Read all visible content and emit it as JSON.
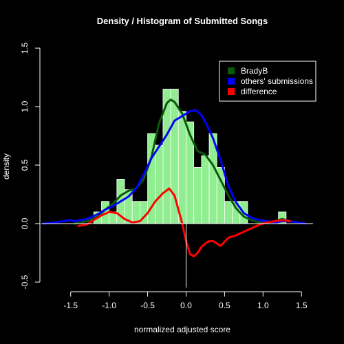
{
  "chart_data": {
    "type": "histogram+density",
    "title": "Density / Histogram of Submitted Songs",
    "xlabel": "normalized adjusted score",
    "ylabel": "density",
    "xlim": [
      -1.9,
      1.65
    ],
    "ylim": [
      -0.5,
      1.5
    ],
    "x_ticks": [
      -1.5,
      -1.0,
      -0.5,
      0.0,
      0.5,
      1.0,
      1.5
    ],
    "x_tick_labels": [
      "-1.5",
      "-1.0",
      "-0.5",
      "0.0",
      "0.5",
      "1.0",
      "1.5"
    ],
    "y_ticks": [
      -0.5,
      0.0,
      0.5,
      1.0,
      1.5
    ],
    "y_tick_labels": [
      "-0.5",
      "0.0",
      "0.5",
      "1.0",
      "1.5"
    ],
    "legend_position": "top-right",
    "histogram": {
      "color": "#90ee90",
      "bin_width": 0.1,
      "bins": [
        {
          "x0": -1.4,
          "x1": -1.3,
          "height": 0.0
        },
        {
          "x0": -1.3,
          "x1": -1.2,
          "height": 0.0
        },
        {
          "x0": -1.2,
          "x1": -1.1,
          "height": 0.1
        },
        {
          "x0": -1.1,
          "x1": -1.0,
          "height": 0.19
        },
        {
          "x0": -1.0,
          "x1": -0.9,
          "height": 0.1
        },
        {
          "x0": -0.9,
          "x1": -0.8,
          "height": 0.38
        },
        {
          "x0": -0.8,
          "x1": -0.7,
          "height": 0.29
        },
        {
          "x0": -0.7,
          "x1": -0.6,
          "height": 0.19
        },
        {
          "x0": -0.6,
          "x1": -0.5,
          "height": 0.19
        },
        {
          "x0": -0.5,
          "x1": -0.4,
          "height": 0.77
        },
        {
          "x0": -0.4,
          "x1": -0.3,
          "height": 0.67
        },
        {
          "x0": -0.3,
          "x1": -0.2,
          "height": 1.15
        },
        {
          "x0": -0.2,
          "x1": -0.1,
          "height": 1.15
        },
        {
          "x0": -0.1,
          "x1": 0.0,
          "height": 0.96
        },
        {
          "x0": 0.0,
          "x1": 0.1,
          "height": 0.87
        },
        {
          "x0": 0.1,
          "x1": 0.2,
          "height": 0.48
        },
        {
          "x0": 0.2,
          "x1": 0.3,
          "height": 0.58
        },
        {
          "x0": 0.3,
          "x1": 0.4,
          "height": 0.77
        },
        {
          "x0": 0.4,
          "x1": 0.5,
          "height": 0.48
        },
        {
          "x0": 0.5,
          "x1": 0.6,
          "height": 0.19
        },
        {
          "x0": 0.6,
          "x1": 0.7,
          "height": 0.19
        },
        {
          "x0": 0.7,
          "x1": 0.8,
          "height": 0.19
        },
        {
          "x0": 0.8,
          "x1": 0.9,
          "height": 0.0
        },
        {
          "x0": 0.9,
          "x1": 1.0,
          "height": 0.0
        },
        {
          "x0": 1.0,
          "x1": 1.1,
          "height": 0.0
        },
        {
          "x0": 1.1,
          "x1": 1.2,
          "height": 0.0
        },
        {
          "x0": 1.2,
          "x1": 1.3,
          "height": 0.1
        }
      ]
    },
    "series": [
      {
        "name": "BradyB",
        "color": "#0a5a0a",
        "x": [
          -1.45,
          -1.35,
          -1.25,
          -1.15,
          -1.05,
          -0.95,
          -0.85,
          -0.75,
          -0.65,
          -0.55,
          -0.45,
          -0.35,
          -0.25,
          -0.2,
          -0.15,
          -0.05,
          0.05,
          0.15,
          0.25,
          0.35,
          0.45,
          0.55,
          0.65,
          0.75,
          0.85,
          0.95,
          1.05,
          1.15,
          1.25,
          1.35
        ],
        "y": [
          0.0,
          0.01,
          0.03,
          0.06,
          0.12,
          0.17,
          0.24,
          0.28,
          0.3,
          0.38,
          0.57,
          0.86,
          1.03,
          1.06,
          1.04,
          0.94,
          0.76,
          0.62,
          0.59,
          0.5,
          0.37,
          0.24,
          0.13,
          0.06,
          0.03,
          0.01,
          0.01,
          0.02,
          0.04,
          0.02
        ]
      },
      {
        "name": "others' submissions",
        "color": "#0000ff",
        "x": [
          -1.85,
          -1.7,
          -1.6,
          -1.5,
          -1.45,
          -1.35,
          -1.25,
          -1.15,
          -1.05,
          -0.95,
          -0.85,
          -0.75,
          -0.65,
          -0.55,
          -0.45,
          -0.35,
          -0.25,
          -0.15,
          -0.05,
          0.05,
          0.12,
          0.2,
          0.25,
          0.35,
          0.45,
          0.55,
          0.65,
          0.75,
          0.85,
          0.95,
          1.05,
          1.15,
          1.25,
          1.35,
          1.45,
          1.55
        ],
        "y": [
          0.0,
          0.01,
          0.02,
          0.03,
          0.02,
          0.03,
          0.05,
          0.08,
          0.12,
          0.15,
          0.19,
          0.23,
          0.3,
          0.42,
          0.56,
          0.66,
          0.76,
          0.88,
          0.92,
          0.96,
          0.97,
          0.93,
          0.87,
          0.73,
          0.54,
          0.32,
          0.18,
          0.09,
          0.05,
          0.03,
          0.02,
          0.01,
          0.02,
          0.02,
          0.01,
          0.0
        ]
      },
      {
        "name": "difference",
        "color": "#ff0000",
        "x": [
          -1.4,
          -1.3,
          -1.2,
          -1.1,
          -1.0,
          -0.9,
          -0.8,
          -0.7,
          -0.6,
          -0.5,
          -0.4,
          -0.3,
          -0.22,
          -0.15,
          -0.1,
          -0.05,
          0.0,
          0.05,
          0.1,
          0.15,
          0.2,
          0.25,
          0.3,
          0.35,
          0.45,
          0.55,
          0.65,
          0.75,
          0.85,
          0.95,
          1.05,
          1.15,
          1.25,
          1.35
        ],
        "y": [
          -0.02,
          -0.01,
          0.03,
          0.07,
          0.1,
          0.09,
          0.04,
          0.01,
          0.02,
          0.09,
          0.19,
          0.26,
          0.3,
          0.24,
          0.12,
          0.0,
          -0.15,
          -0.26,
          -0.28,
          -0.25,
          -0.2,
          -0.17,
          -0.15,
          -0.15,
          -0.19,
          -0.12,
          -0.1,
          -0.07,
          -0.04,
          -0.01,
          0.01,
          0.02,
          0.03,
          0.02
        ]
      }
    ]
  }
}
